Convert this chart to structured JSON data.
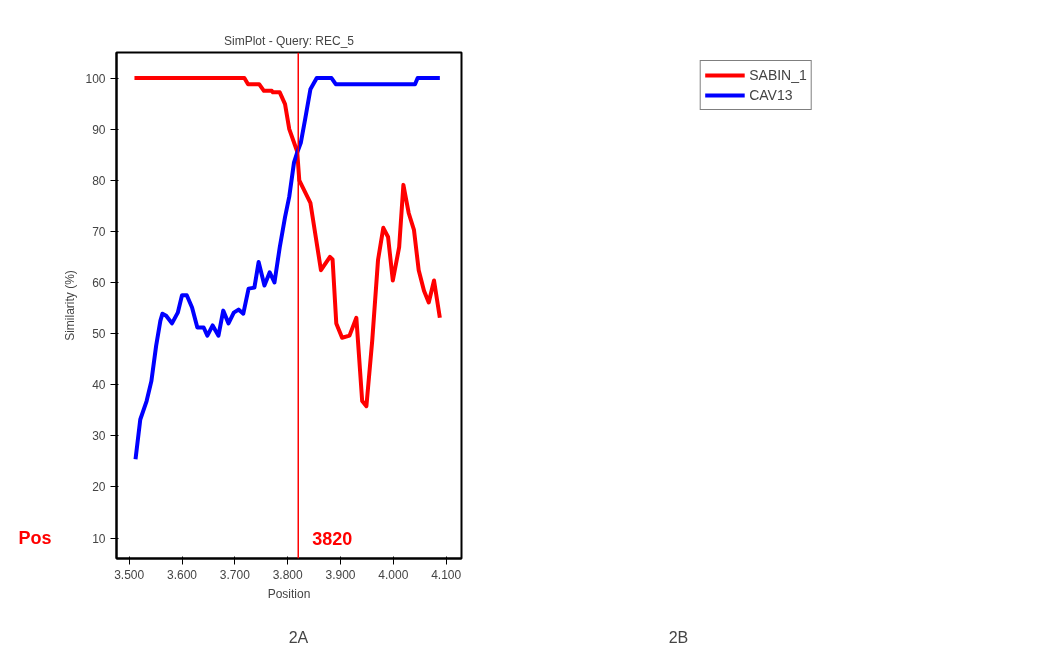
{
  "chart_data": {
    "type": "line",
    "title": "SimPlot - Query: REC_5",
    "xlabel": "Position",
    "ylabel": "Similarity (%)",
    "xlim": [
      3476,
      4129
    ],
    "ylim": [
      6,
      105
    ],
    "xticks": [
      {
        "value": 3500,
        "label": "3.500"
      },
      {
        "value": 3600,
        "label": "3.600"
      },
      {
        "value": 3700,
        "label": "3.700"
      },
      {
        "value": 3800,
        "label": "3.800"
      },
      {
        "value": 3900,
        "label": "3.900"
      },
      {
        "value": 4000,
        "label": "4.000"
      },
      {
        "value": 4100,
        "label": "4.100"
      }
    ],
    "yticks": [
      10,
      20,
      30,
      40,
      50,
      60,
      70,
      80,
      90,
      100
    ],
    "grid": false,
    "legend": "top right",
    "marker": "none",
    "line_style": "solid",
    "ref_lines": [
      {
        "axis": "x",
        "value": 3820,
        "label": "3820",
        "color": "#ff0000"
      }
    ],
    "annotations": [
      "Pos",
      "2A",
      "2B"
    ],
    "series": [
      {
        "name": "SABIN_1",
        "color": "#ff0000",
        "x": [
          3510,
          3718,
          3725,
          3746,
          3755,
          3770,
          3772,
          3785,
          3795,
          3803,
          3812,
          3818,
          3822,
          3843,
          3863,
          3880,
          3885,
          3892,
          3903,
          3917,
          3930,
          3941,
          3949,
          3960,
          3971,
          3981,
          3990,
          3999,
          4011,
          4019,
          4029,
          4039,
          4048,
          4058,
          4067,
          4077,
          4088
        ],
        "values": [
          100,
          100,
          98.8,
          98.8,
          97.5,
          97.5,
          97.2,
          97.2,
          94.9,
          90,
          87.4,
          85.6,
          80,
          75.6,
          62.4,
          65,
          64.5,
          52,
          49.2,
          49.6,
          53.1,
          36.8,
          35.8,
          48.6,
          64.4,
          70.7,
          68.9,
          60.4,
          66.9,
          79.1,
          73.6,
          70.3,
          62.4,
          58.4,
          56.1,
          60.4,
          53.1
        ]
      },
      {
        "name": "CAV13",
        "color": "#0000ff",
        "x": [
          3512,
          3521,
          3533,
          3542,
          3551,
          3559,
          3563,
          3570,
          3581,
          3592,
          3600,
          3609,
          3619,
          3629,
          3641,
          3648,
          3658,
          3669,
          3678,
          3688,
          3698,
          3707,
          3716,
          3726,
          3737,
          3745,
          3756,
          3766,
          3775,
          3785,
          3795,
          3803,
          3812,
          3818,
          3825,
          3833,
          3843,
          3855,
          3883,
          3891,
          4041,
          4046,
          4088
        ],
        "values": [
          25.4,
          33.2,
          36.8,
          40.7,
          47.6,
          52.5,
          53.9,
          53.5,
          52,
          54.1,
          57.5,
          57.5,
          55.1,
          51.2,
          51.2,
          49.6,
          51.6,
          49.6,
          54.5,
          52,
          54.1,
          54.7,
          53.9,
          58.8,
          59,
          64,
          59.4,
          62,
          60,
          66.9,
          72.8,
          76.8,
          83.5,
          85.4,
          87.4,
          91.9,
          97.8,
          100,
          100,
          98.8,
          98.8,
          100,
          100
        ]
      }
    ]
  }
}
